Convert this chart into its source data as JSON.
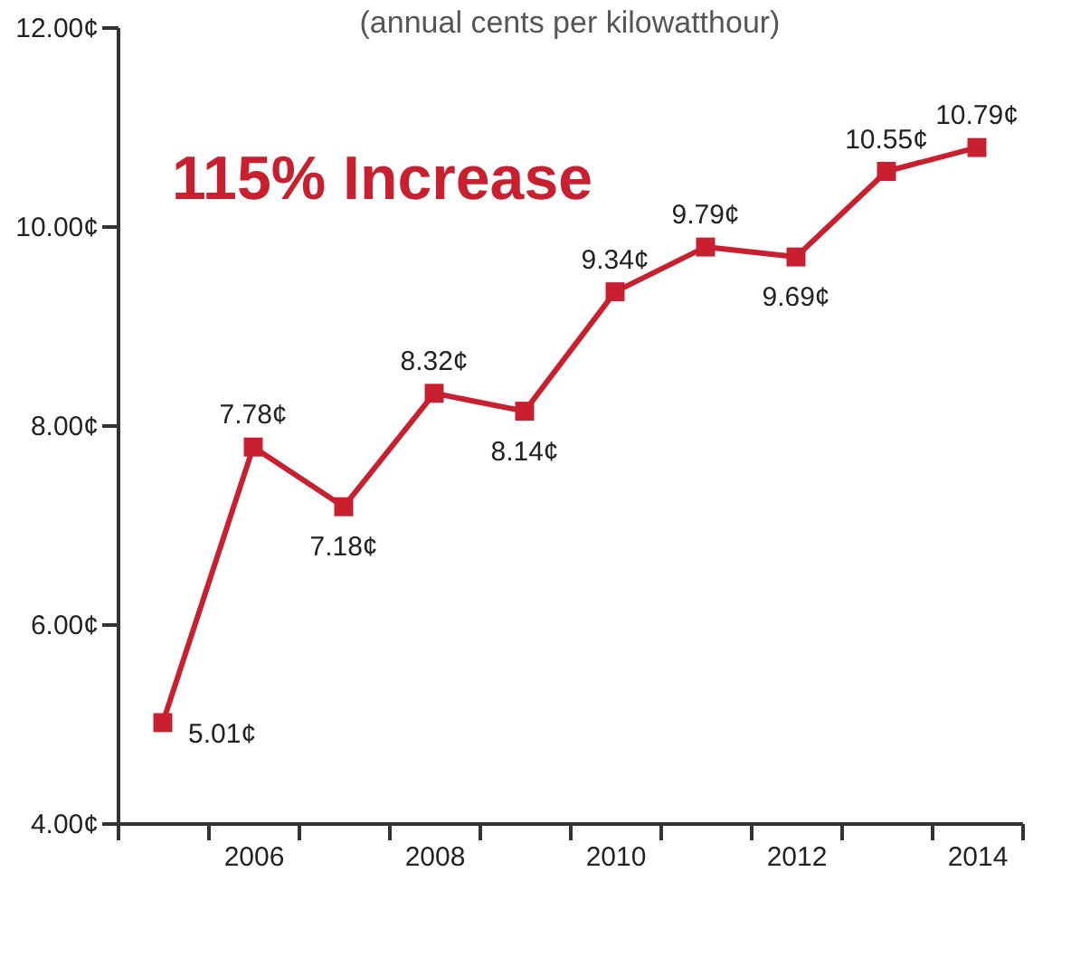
{
  "chart_data": {
    "type": "line",
    "title": "(annual cents per kilowatthour)",
    "annotations": [
      "115% Increase"
    ],
    "categories": [
      null,
      "2006",
      null,
      "2008",
      null,
      "2010",
      null,
      "2012",
      null,
      "2014"
    ],
    "series": [
      {
        "color": "#c8202f",
        "values": [
          5.01,
          7.78,
          7.18,
          8.32,
          8.14,
          9.34,
          9.79,
          9.69,
          10.55,
          10.79
        ]
      }
    ],
    "value_labels": [
      "5.01¢",
      "7.78¢",
      "7.18¢",
      "8.32¢",
      "8.14¢",
      "9.34¢",
      "9.79¢",
      "9.69¢",
      "10.55¢",
      "10.79¢"
    ],
    "ylim": [
      4,
      12
    ],
    "yticks": [
      {
        "value": 4,
        "label": "4.00¢"
      },
      {
        "value": 6,
        "label": "6.00¢"
      },
      {
        "value": 8,
        "label": "8.00¢"
      },
      {
        "value": 10,
        "label": "10.00¢"
      },
      {
        "value": 12,
        "label": "12.00¢"
      }
    ],
    "marker": "square",
    "grid": false
  }
}
